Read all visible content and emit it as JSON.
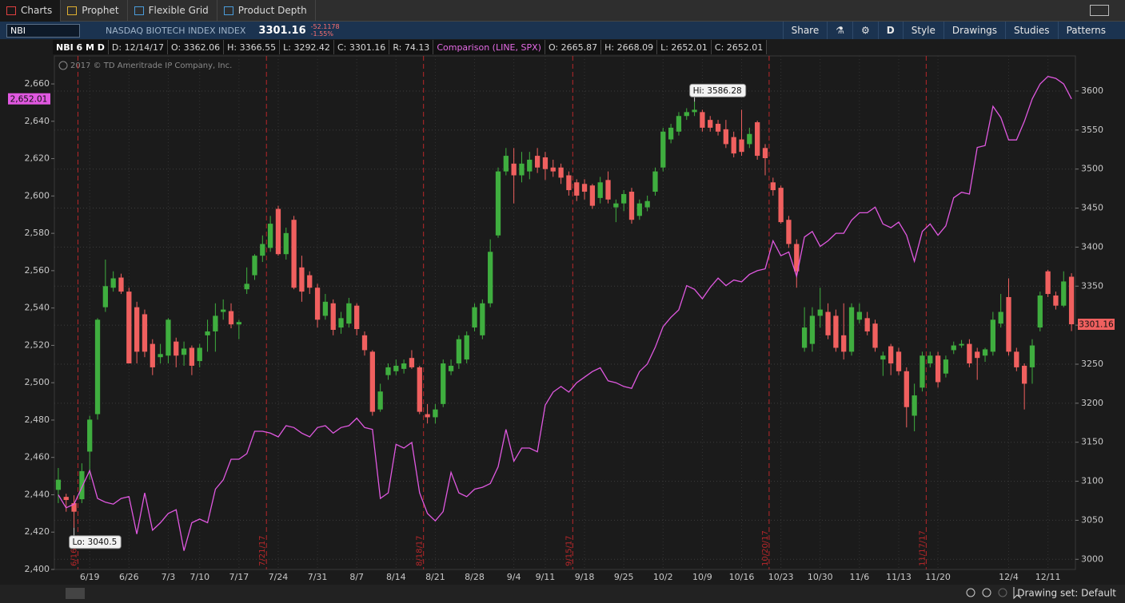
{
  "ui": {
    "tabs": [
      "Charts",
      "Prophet",
      "Flexible Grid",
      "Product Depth"
    ],
    "toolbar": {
      "symbol": "NBI",
      "description": "NASDAQ BIOTECH INDEX INDEX",
      "last": "3301.16",
      "change": "-52.1178",
      "change_pct": "-1.55%",
      "aggregation": "D",
      "buttons": [
        "Share",
        "Style",
        "Drawings",
        "Studies",
        "Patterns"
      ]
    },
    "footer": "Drawing set: Default"
  },
  "chart_data": {
    "type": "candlestick",
    "header": {
      "study": "NBI 6 M D",
      "date": "D: 12/14/17",
      "open": "O: 3362.06",
      "high": "H: 3366.55",
      "low": "L: 3292.42",
      "close": "C: 3301.16",
      "range": "R: 74.13"
    },
    "comparison_header": {
      "open": "O: 2665.87",
      "high": "H: 2668.09",
      "low": "L: 2652.01",
      "close": "C: 2652.01"
    },
    "copyright": "2017 © TD Ameritrade IP Company, Inc.",
    "hi_label": "Hi: 3586.28",
    "lo_label": "Lo: 3040.5",
    "y_tag": "2,652.01",
    "y2_tag": "3301.16",
    "grid": true,
    "categories": [
      null,
      null,
      null,
      null,
      "6/19",
      null,
      null,
      null,
      null,
      "6/26",
      null,
      null,
      null,
      null,
      "7/3",
      null,
      null,
      null,
      "7/10",
      null,
      null,
      null,
      null,
      "7/17",
      null,
      null,
      null,
      null,
      "7/24",
      null,
      null,
      null,
      null,
      "7/31",
      null,
      null,
      null,
      null,
      "8/7",
      null,
      null,
      null,
      null,
      "8/14",
      null,
      null,
      null,
      null,
      "8/21",
      null,
      null,
      null,
      null,
      "8/28",
      null,
      null,
      null,
      null,
      "9/4",
      null,
      null,
      null,
      "9/11",
      null,
      null,
      null,
      null,
      "9/18",
      null,
      null,
      null,
      null,
      "9/25",
      null,
      null,
      null,
      null,
      "10/2",
      null,
      null,
      null,
      null,
      "10/9",
      null,
      null,
      null,
      null,
      "10/16",
      null,
      null,
      null,
      null,
      "10/23",
      null,
      null,
      null,
      null,
      "10/30",
      null,
      null,
      null,
      null,
      "11/6",
      null,
      null,
      null,
      null,
      "11/13",
      null,
      null,
      null,
      null,
      "11/20",
      null,
      null,
      null,
      null,
      null,
      null,
      null,
      null,
      "12/4",
      null,
      null,
      null,
      null,
      "12/11",
      null,
      null,
      null
    ],
    "event_labels": [
      null,
      null,
      null,
      "6/16/17",
      null,
      null,
      null,
      null,
      null,
      null,
      null,
      null,
      null,
      null,
      null,
      null,
      null,
      null,
      null,
      null,
      null,
      null,
      null,
      null,
      null,
      null,
      null,
      "7/21/17",
      null,
      null,
      null,
      null,
      null,
      null,
      null,
      null,
      null,
      null,
      null,
      null,
      null,
      null,
      null,
      null,
      null,
      null,
      null,
      "8/18/17",
      null,
      null,
      null,
      null,
      null,
      null,
      null,
      null,
      null,
      null,
      null,
      null,
      null,
      null,
      null,
      null,
      null,
      null,
      "9/15/17",
      null,
      null,
      null,
      null,
      null,
      null,
      null,
      null,
      null,
      null,
      null,
      null,
      null,
      null,
      null,
      null,
      null,
      null,
      null,
      null,
      null,
      null,
      null,
      null,
      "10/20/17",
      null,
      null,
      null,
      null,
      null,
      null,
      null,
      null,
      null,
      null,
      null,
      null,
      null,
      null,
      null,
      null,
      null,
      null,
      null,
      "11/17/17",
      null,
      null,
      null,
      null,
      null,
      null,
      null,
      null,
      null,
      null,
      null,
      null,
      null,
      null,
      null,
      null,
      null,
      null
    ],
    "event_color": "#b8272a",
    "candles": {
      "name": "NBI",
      "axis": "y2",
      "up_color": "#3fae3f",
      "down_color": "#f0605f",
      "open": [
        3089,
        3080,
        3072,
        3077,
        3138,
        3186,
        3323,
        3348,
        3361,
        3343,
        3323,
        3314,
        3276,
        3259,
        3261,
        3279,
        3262,
        3271,
        3254,
        3287,
        3292,
        3317,
        3318,
        3301,
        3346,
        3364,
        3389,
        3399,
        3449,
        3391,
        3435,
        3374,
        3364,
        3348,
        3312,
        3328,
        3297,
        3302,
        3325,
        3287,
        3266,
        3192,
        3236,
        3241,
        3244,
        3258,
        3246,
        3186,
        3182,
        3199,
        3241,
        3251,
        3256,
        3297,
        3287,
        3328,
        3415,
        3497,
        3507,
        3492,
        3497,
        3517,
        3515,
        3502,
        3502,
        3492,
        3483,
        3481,
        3479,
        3463,
        3486,
        3451,
        3456,
        3471,
        3440,
        3451,
        3471,
        3502,
        3538,
        3548,
        3568,
        3573,
        3573,
        3563,
        3558,
        3551,
        3541,
        3538,
        3532,
        3560,
        3527,
        3483,
        3476,
        3435,
        3404,
        3271,
        3276,
        3312,
        3317,
        3312,
        3287,
        3266,
        3307,
        3309,
        3302,
        3256,
        3273,
        3266,
        3241,
        3184,
        3220,
        3251,
        3261,
        3238,
        3268,
        3274,
        3276,
        3266,
        3261,
        3266,
        3302,
        3336,
        3266,
        3248,
        3246,
        3297,
        3369,
        3338,
        3325,
        3362.06
      ],
      "high": [
        3117,
        3084,
        3082,
        3123,
        3184,
        3309,
        3384,
        3369,
        3366,
        3348,
        3330,
        3320,
        3282,
        3276,
        3309,
        3284,
        3279,
        3274,
        3276,
        3307,
        3328,
        3333,
        3328,
        3307,
        3374,
        3391,
        3415,
        3440,
        3453,
        3425,
        3440,
        3389,
        3369,
        3353,
        3340,
        3333,
        3317,
        3335,
        3328,
        3292,
        3268,
        3225,
        3251,
        3256,
        3256,
        3268,
        3248,
        3199,
        3199,
        3256,
        3256,
        3287,
        3292,
        3328,
        3333,
        3410,
        3502,
        3527,
        3527,
        3522,
        3522,
        3527,
        3522,
        3512,
        3507,
        3497,
        3487,
        3487,
        3481,
        3490,
        3497,
        3461,
        3473,
        3476,
        3461,
        3466,
        3502,
        3553,
        3558,
        3573,
        3578,
        3586.28,
        3576,
        3568,
        3563,
        3563,
        3548,
        3576,
        3553,
        3562,
        3532,
        3489,
        3479,
        3440,
        3410,
        3323,
        3323,
        3348,
        3328,
        3320,
        3328,
        3328,
        3328,
        3317,
        3307,
        3266,
        3276,
        3271,
        3246,
        3225,
        3266,
        3266,
        3266,
        3261,
        3279,
        3281,
        3282,
        3271,
        3271,
        3317,
        3340,
        3360,
        3271,
        3251,
        3282,
        3343,
        3371,
        3343,
        3369,
        3366.55
      ],
      "low": [
        3072,
        3061,
        3040.5,
        3072,
        3102,
        3179,
        3317,
        3343,
        3340,
        3251,
        3251,
        3259,
        3236,
        3251,
        3251,
        3246,
        3248,
        3236,
        3246,
        3266,
        3266,
        3307,
        3296,
        3282,
        3340,
        3358,
        3381,
        3394,
        3389,
        3384,
        3346,
        3330,
        3340,
        3297,
        3307,
        3287,
        3289,
        3297,
        3287,
        3261,
        3184,
        3189,
        3230,
        3236,
        3238,
        3244,
        3186,
        3174,
        3174,
        3195,
        3236,
        3244,
        3251,
        3292,
        3282,
        3323,
        3412,
        3492,
        3456,
        3483,
        3487,
        3495,
        3486,
        3490,
        3481,
        3466,
        3459,
        3461,
        3449,
        3456,
        3456,
        3432,
        3446,
        3430,
        3435,
        3446,
        3466,
        3497,
        3533,
        3543,
        3563,
        3568,
        3548,
        3548,
        3543,
        3527,
        3515,
        3517,
        3527,
        3512,
        3492,
        3466,
        3430,
        3399,
        3348,
        3266,
        3266,
        3297,
        3282,
        3266,
        3256,
        3261,
        3302,
        3287,
        3266,
        3235,
        3236,
        3236,
        3169,
        3164,
        3215,
        3246,
        3220,
        3233,
        3263,
        3271,
        3246,
        3230,
        3253,
        3261,
        3297,
        3261,
        3241,
        3192,
        3225,
        3292,
        3336,
        3320,
        3323,
        3292.42
      ],
      "close": [
        3102,
        3076,
        3061,
        3113,
        3179,
        3307,
        3350,
        3360,
        3343,
        3251,
        3266,
        3266,
        3246,
        3263,
        3307,
        3261,
        3270,
        3248,
        3271,
        3292,
        3312,
        3320,
        3301,
        3304,
        3353,
        3389,
        3404,
        3430,
        3391,
        3418,
        3348,
        3343,
        3348,
        3307,
        3330,
        3294,
        3309,
        3328,
        3295,
        3268,
        3189,
        3215,
        3246,
        3248,
        3251,
        3246,
        3189,
        3182,
        3192,
        3251,
        3248,
        3282,
        3287,
        3323,
        3328,
        3394,
        3497,
        3517,
        3492,
        3507,
        3512,
        3502,
        3500,
        3497,
        3489,
        3473,
        3466,
        3471,
        3453,
        3483,
        3461,
        3456,
        3468,
        3435,
        3456,
        3459,
        3497,
        3548,
        3553,
        3568,
        3573,
        3576,
        3553,
        3553,
        3548,
        3532,
        3520,
        3522,
        3545,
        3517,
        3514,
        3473,
        3432,
        3404,
        3369,
        3297,
        3312,
        3320,
        3287,
        3271,
        3266,
        3323,
        3317,
        3292,
        3271,
        3261,
        3251,
        3241,
        3195,
        3210,
        3261,
        3261,
        3227,
        3256,
        3274,
        3276,
        3251,
        3258,
        3269,
        3307,
        3317,
        3266,
        3246,
        3225,
        3274,
        3338,
        3340,
        3325,
        3356,
        3301.16
      ]
    },
    "series": [
      {
        "name": "Comparison (LINE, SPX)",
        "color": "#e058e0",
        "values": [
          2440,
          2433,
          2435,
          2444,
          2453,
          2438,
          2436,
          2435,
          2438,
          2439,
          2419,
          2441,
          2421,
          2425,
          2430,
          2432,
          2410,
          2425,
          2427,
          2425,
          2443,
          2448,
          2459,
          2459,
          2462,
          2474,
          2474,
          2473,
          2471,
          2477,
          2476,
          2473,
          2471,
          2476,
          2477,
          2473,
          2476,
          2477,
          2481,
          2476,
          2475,
          2438,
          2441,
          2467,
          2465,
          2468,
          2441,
          2430,
          2426,
          2431,
          2452,
          2441,
          2439,
          2443,
          2444,
          2446,
          2455,
          2475,
          2458,
          2465,
          2465,
          2463,
          2488,
          2495,
          2498,
          2495,
          2500,
          2503,
          2506,
          2508,
          2501,
          2500,
          2498,
          2497,
          2506,
          2510,
          2519,
          2530,
          2535,
          2539,
          2552,
          2550,
          2545,
          2551,
          2556,
          2552,
          2555,
          2554,
          2558,
          2560,
          2561,
          2576,
          2568,
          2570,
          2557,
          2578,
          2581,
          2573,
          2576,
          2580,
          2580,
          2587,
          2591,
          2591,
          2594,
          2585,
          2583,
          2586,
          2579,
          2565,
          2581,
          2585,
          2579,
          2584,
          2599,
          2602,
          2601,
          2626,
          2627,
          2648,
          2642,
          2630,
          2630,
          2640,
          2652,
          2660,
          2664,
          2663,
          2660,
          2652.01
        ]
      }
    ],
    "ylim": [
      2400,
      2675
    ],
    "yticks": [
      {
        "value": 2400,
        "label": "2,400"
      },
      {
        "value": 2420,
        "label": "2,420"
      },
      {
        "value": 2440,
        "label": "2,440"
      },
      {
        "value": 2460,
        "label": "2,460"
      },
      {
        "value": 2480,
        "label": "2,480"
      },
      {
        "value": 2500,
        "label": "2,500"
      },
      {
        "value": 2520,
        "label": "2,520"
      },
      {
        "value": 2540,
        "label": "2,540"
      },
      {
        "value": 2560,
        "label": "2,560"
      },
      {
        "value": 2580,
        "label": "2,580"
      },
      {
        "value": 2600,
        "label": "2,600"
      },
      {
        "value": 2620,
        "label": "2,620"
      },
      {
        "value": 2640,
        "label": "2,640"
      },
      {
        "value": 2660,
        "label": "2,660"
      }
    ],
    "y2lim": [
      2987,
      3645
    ],
    "y2ticks": [
      3000,
      3050,
      3100,
      3150,
      3200,
      3250,
      3300,
      3350,
      3400,
      3450,
      3500,
      3550,
      3600
    ]
  }
}
